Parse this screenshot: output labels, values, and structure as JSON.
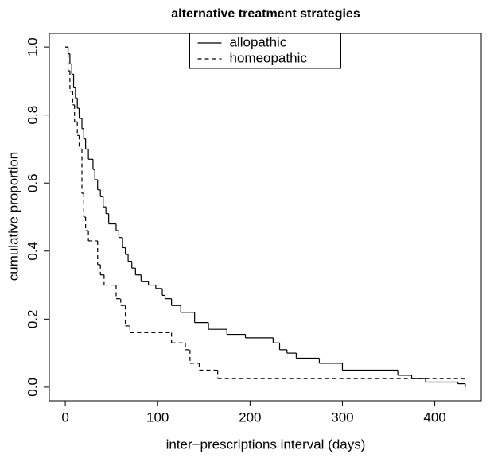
{
  "chart_data": {
    "type": "line",
    "steps": "post",
    "title": "alternative treatment strategies",
    "x_label": "inter−prescriptions interval (days)",
    "y_label": "cumulative proportion",
    "xlim": [
      -17.3,
      450.3
    ],
    "ylim": [
      -0.04,
      1.04
    ],
    "xticks": [
      0,
      100,
      200,
      300,
      400
    ],
    "yticks": [
      {
        "value": 0,
        "label": "0.0"
      },
      {
        "value": 0.2,
        "label": "0.2"
      },
      {
        "value": 0.4,
        "label": "0.4"
      },
      {
        "value": 0.6,
        "label": "0.6"
      },
      {
        "value": 0.8,
        "label": "0.8"
      },
      {
        "value": 1,
        "label": "1.0"
      }
    ],
    "legend": "top",
    "series": [
      {
        "name": "allopathic",
        "color": "#000000",
        "dash": "none",
        "x": [
          0,
          3,
          5,
          7,
          9,
          11,
          13,
          15,
          18,
          20,
          22,
          25,
          30,
          32,
          35,
          38,
          41,
          44,
          47,
          55,
          58,
          62,
          65,
          68,
          72,
          76,
          82,
          90,
          98,
          105,
          108,
          115,
          125,
          140,
          155,
          175,
          195,
          225,
          232,
          240,
          250,
          275,
          300,
          360,
          375,
          390,
          425,
          433
        ],
        "values": [
          1,
          0.98,
          0.95,
          0.92,
          0.88,
          0.85,
          0.82,
          0.79,
          0.76,
          0.73,
          0.7,
          0.67,
          0.64,
          0.61,
          0.58,
          0.56,
          0.53,
          0.51,
          0.48,
          0.46,
          0.44,
          0.41,
          0.39,
          0.37,
          0.35,
          0.33,
          0.31,
          0.3,
          0.29,
          0.27,
          0.26,
          0.24,
          0.22,
          0.19,
          0.17,
          0.155,
          0.145,
          0.13,
          0.11,
          0.1,
          0.085,
          0.07,
          0.05,
          0.035,
          0.025,
          0.015,
          0.01,
          0
        ]
      },
      {
        "name": "homeopathic",
        "color": "#000000",
        "dash": "5,4",
        "x": [
          0,
          3,
          5,
          8,
          10,
          13,
          15,
          18,
          20,
          22,
          25,
          35,
          38,
          42,
          55,
          60,
          65,
          70,
          115,
          130,
          135,
          145,
          165,
          433
        ],
        "values": [
          1,
          0.93,
          0.87,
          0.83,
          0.78,
          0.74,
          0.7,
          0.57,
          0.5,
          0.46,
          0.43,
          0.36,
          0.33,
          0.3,
          0.26,
          0.24,
          0.18,
          0.16,
          0.13,
          0.11,
          0.07,
          0.05,
          0.025,
          0.025
        ]
      }
    ]
  }
}
